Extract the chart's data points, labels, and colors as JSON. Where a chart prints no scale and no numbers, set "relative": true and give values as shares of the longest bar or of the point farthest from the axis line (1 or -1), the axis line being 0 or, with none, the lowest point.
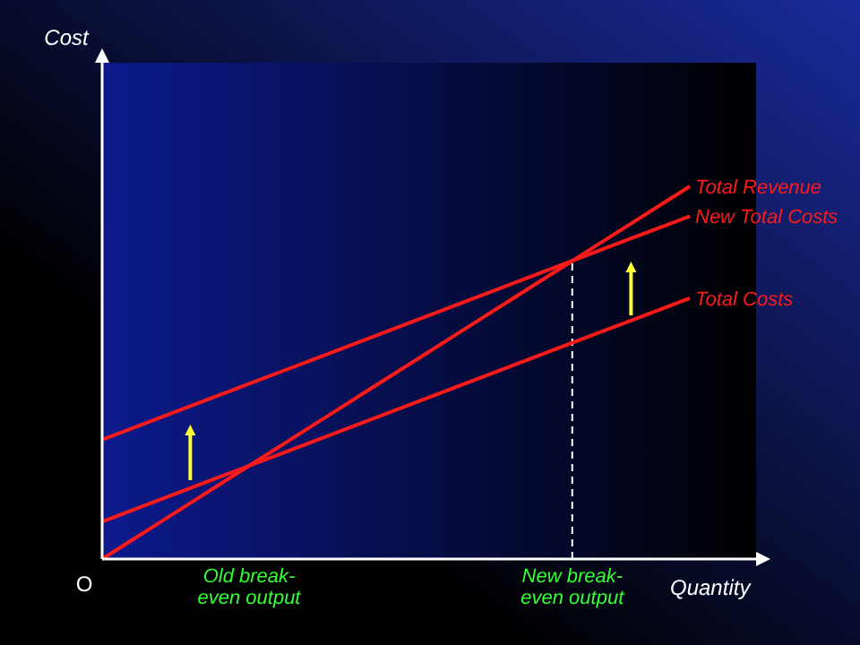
{
  "chart_data": {
    "type": "line",
    "relative": true,
    "xlabel": "Quantity",
    "categories": [
      null,
      null,
      null,
      null,
      null,
      "Old break-even output",
      null,
      null,
      null,
      null,
      null,
      null,
      null,
      null,
      null,
      null,
      "New break-even output",
      null,
      null,
      null,
      null
    ],
    "tick_labels": "x",
    "legend": false,
    "marker": "none",
    "line_style": "solid",
    "series": [
      {
        "name": "Total Revenue",
        "color": "#ff1a1a",
        "values": [
          0,
          0.05,
          0.1,
          0.15,
          0.2,
          0.25,
          0.3,
          0.35,
          0.4,
          0.45,
          0.5,
          0.55,
          0.6,
          0.65,
          0.7,
          0.75,
          0.8,
          0.85,
          0.9,
          0.95,
          1
        ]
      },
      {
        "name": "New Total Costs",
        "color": "#ff1a1a",
        "values": [
          0.32,
          0.35,
          0.38,
          0.41,
          0.44,
          0.47,
          0.5,
          0.53,
          0.56,
          0.59,
          0.62,
          0.65,
          0.68,
          0.71,
          0.74,
          0.77,
          0.8,
          0.83,
          0.86,
          0.89,
          0.92
        ]
      },
      {
        "name": "Total Costs",
        "color": "#ff1a1a",
        "values": [
          0.1,
          0.13,
          0.16,
          0.19,
          0.22,
          0.25,
          0.28,
          0.31,
          0.34,
          0.37,
          0.4,
          0.43,
          0.46,
          0.49,
          0.52,
          0.55,
          0.58,
          0.61,
          0.64,
          0.67,
          0.7
        ]
      }
    ],
    "ref_lines": [
      {
        "axis": "x",
        "value": "New break-even output",
        "label": null,
        "color": "#ffffff",
        "line_style": "dashed"
      }
    ],
    "annotations": [
      "Cost",
      "O"
    ]
  }
}
